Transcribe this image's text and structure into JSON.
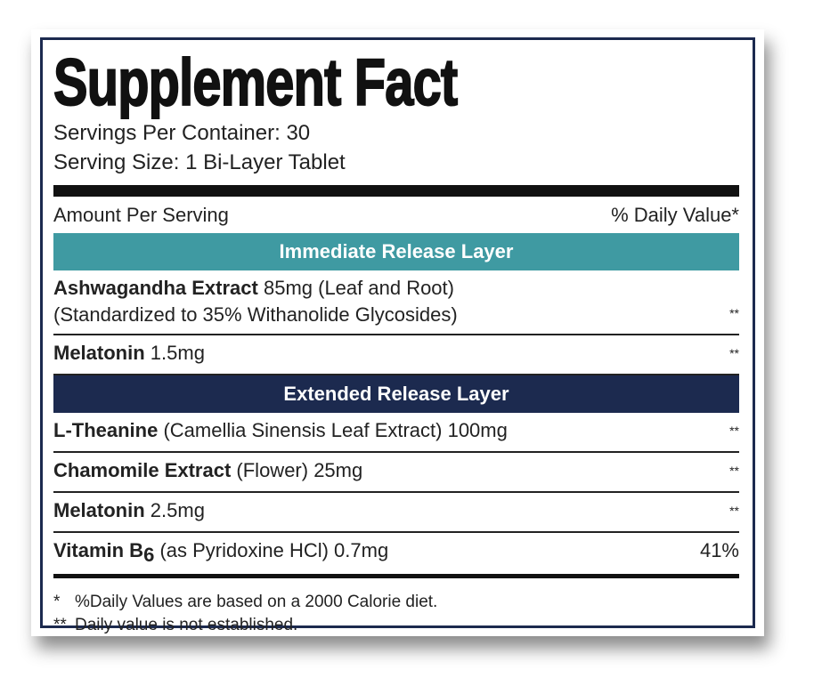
{
  "header": {
    "title": "Supplement Fact",
    "servings_per_container": "Servings Per Container: 30",
    "serving_size": "Serving Size: 1 Bi-Layer Tablet"
  },
  "columns": {
    "amount": "Amount Per Serving",
    "daily_value": "% Daily Value*"
  },
  "sections": [
    {
      "title": "Immediate Release Layer",
      "color": "#3f9aa2",
      "rows": [
        {
          "name": "Ashwagandha Extract",
          "detail": "85mg (Leaf and Root)",
          "detail2": "(Standardized to 35% Withanolide Glycosides)",
          "dv": "**"
        },
        {
          "name": "Melatonin",
          "detail": "1.5mg",
          "dv": "**"
        }
      ]
    },
    {
      "title": "Extended Release Layer",
      "color": "#1c2a4f",
      "rows": [
        {
          "name": "L-Theanine",
          "detail": "(Camellia Sinensis Leaf Extract) 100mg",
          "dv": "**"
        },
        {
          "name": "Chamomile Extract",
          "detail": "(Flower) 25mg",
          "dv": "**"
        },
        {
          "name": "Melatonin",
          "detail": "2.5mg",
          "dv": "**"
        },
        {
          "name": "Vitamin B",
          "subscript": "6",
          "detail": "(as Pyridoxine HCl) 0.7mg",
          "dv": "41%"
        }
      ]
    }
  ],
  "footnotes": [
    {
      "mark": "*",
      "text": "%Daily Values are based on a 2000 Calorie diet."
    },
    {
      "mark": "**",
      "text": "Daily value is not established."
    }
  ]
}
